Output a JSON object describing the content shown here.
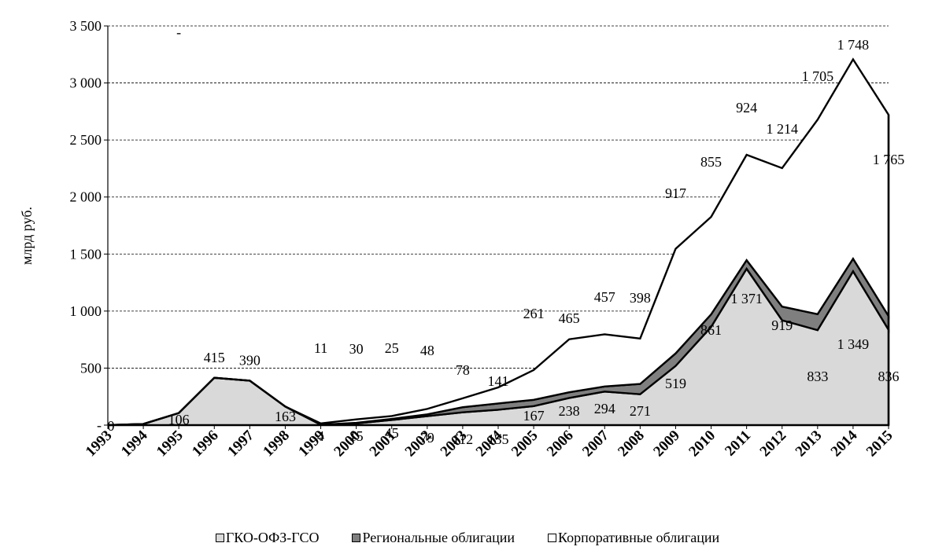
{
  "chart_data": {
    "type": "area",
    "stacked": true,
    "ylabel": "млрд руб.",
    "ylim": [
      0,
      3500
    ],
    "yticks": [
      0,
      500,
      1000,
      1500,
      2000,
      2500,
      3000,
      3500
    ],
    "ytick_labels": [
      "-",
      "500",
      "1 000",
      "1 500",
      "2 000",
      "2 500",
      "3 000",
      "3 500"
    ],
    "grid": "horizontal dashed",
    "legend_position": "bottom",
    "categories": [
      "1993",
      "1994",
      "1995",
      "1996",
      "1997",
      "1998",
      "1999",
      "2000",
      "2001",
      "2002",
      "2003",
      "2004",
      "2005",
      "2006",
      "2007",
      "2008",
      "2009",
      "2010",
      "2011",
      "2012",
      "2013",
      "2014",
      "2015"
    ],
    "series": [
      {
        "name": "ГКО-ОФЗ-ГСО",
        "color": "#d9d9d9",
        "values": [
          0,
          10,
          106,
          415,
          390,
          163,
          4,
          15,
          45,
          79,
          112,
          135,
          167,
          238,
          294,
          271,
          519,
          861,
          1371,
          919,
          833,
          1349,
          836
        ],
        "labels": [
          "0",
          "",
          "106",
          "415",
          "390",
          "163",
          "4",
          "15",
          "45",
          "79",
          "112",
          "135",
          "167",
          "238",
          "294",
          "271",
          "519",
          "861",
          "1 371",
          "919",
          "833",
          "1 349",
          "836"
        ]
      },
      {
        "name": "Региональные облигации",
        "color": "#7f7f7f",
        "values": [
          0,
          0,
          0,
          0,
          0,
          0,
          0,
          5,
          10,
          15,
          45,
          55,
          55,
          50,
          45,
          90,
          110,
          110,
          75,
          120,
          140,
          110,
          120
        ],
        "labels": []
      },
      {
        "name": "Корпоративные облигации",
        "color": "#ffffff",
        "values": [
          0,
          0,
          0,
          0,
          0,
          0,
          11,
          30,
          25,
          48,
          78,
          141,
          261,
          465,
          457,
          398,
          917,
          855,
          924,
          1214,
          1705,
          1748,
          1765
        ],
        "labels": [
          "",
          "",
          "-",
          "",
          "",
          "",
          "11",
          "30",
          "25",
          "48",
          "78",
          "141",
          "261",
          "465",
          "457",
          "398",
          "917",
          "855",
          "924",
          "1 214",
          "1 705",
          "1 748",
          "1 765"
        ]
      }
    ]
  }
}
